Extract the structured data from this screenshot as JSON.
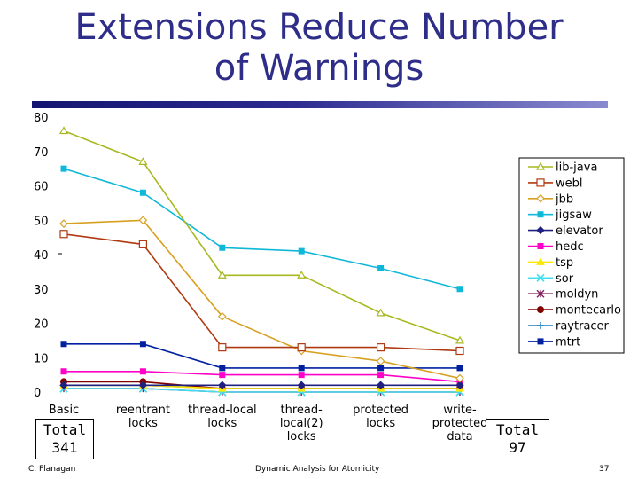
{
  "page": {
    "title_line1": "Extensions Reduce Number",
    "title_line2": "of Warnings",
    "total_left_label": "Total",
    "total_left_value": "341",
    "total_right_label": "Total",
    "total_right_value": "97",
    "footer_author": "C. Flanagan",
    "footer_center": "Dynamic Analysis for Atomicity",
    "footer_page": "37"
  },
  "chart_data": {
    "type": "line",
    "title": "",
    "xlabel": "",
    "ylabel": "",
    "ylim": [
      0,
      80
    ],
    "yticks": [
      0,
      10,
      20,
      30,
      40,
      50,
      60,
      70,
      80
    ],
    "categories": [
      [
        "Basic"
      ],
      [
        "reentrant",
        "locks"
      ],
      [
        "thread-local",
        "locks"
      ],
      [
        "thread-",
        "local(2)",
        "locks"
      ],
      [
        "protected",
        "locks"
      ],
      [
        "write-",
        "protected",
        "data"
      ]
    ],
    "legend_position": "right",
    "series": [
      {
        "name": "lib-java",
        "color": "#a8b820",
        "marker": "triangle",
        "values": [
          76,
          67,
          34,
          34,
          23,
          15
        ]
      },
      {
        "name": "webl",
        "color": "#b03a10",
        "marker": "square",
        "values": [
          46,
          43,
          13,
          13,
          13,
          12
        ]
      },
      {
        "name": "jbb",
        "color": "#d8a020",
        "marker": "diamond",
        "values": [
          49,
          50,
          22,
          12,
          9,
          4
        ]
      },
      {
        "name": "jigsaw",
        "color": "#10b8d8",
        "marker": "fsquare",
        "values": [
          65,
          58,
          42,
          41,
          36,
          30
        ]
      },
      {
        "name": "elevator",
        "color": "#202080",
        "marker": "fdiamond",
        "values": [
          2,
          2,
          2,
          2,
          2,
          2
        ]
      },
      {
        "name": "hedc",
        "color": "#ff00c8",
        "marker": "fsquare",
        "values": [
          6,
          6,
          5,
          5,
          5,
          3
        ]
      },
      {
        "name": "tsp",
        "color": "#ffe800",
        "marker": "ftriangle",
        "values": [
          2,
          2,
          1,
          1,
          1,
          1
        ]
      },
      {
        "name": "sor",
        "color": "#40e0f0",
        "marker": "x",
        "values": [
          1,
          1,
          0,
          0,
          0,
          0
        ]
      },
      {
        "name": "moldyn",
        "color": "#802060",
        "marker": "star",
        "values": [
          1,
          1,
          0,
          0,
          0,
          0
        ]
      },
      {
        "name": "montecarlo",
        "color": "#800000",
        "marker": "circle",
        "values": [
          3,
          3,
          1,
          1,
          1,
          1
        ]
      },
      {
        "name": "raytracer",
        "color": "#2080c0",
        "marker": "plus",
        "values": [
          2,
          2,
          1,
          1,
          1,
          1
        ]
      },
      {
        "name": "mtrt",
        "color": "#0020a0",
        "marker": "fsquare",
        "values": [
          14,
          14,
          7,
          7,
          7,
          7
        ]
      }
    ]
  }
}
